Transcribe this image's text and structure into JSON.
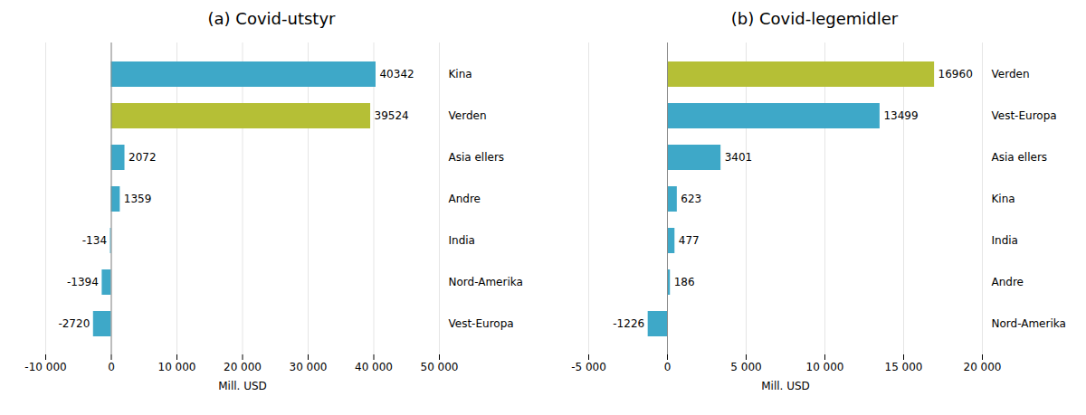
{
  "chart_data": [
    {
      "type": "bar",
      "orientation": "horizontal",
      "title": "(a) Covid-utstyr",
      "categories": [
        "Kina",
        "Verden",
        "Asia ellers",
        "Andre",
        "India",
        "Nord-Amerika",
        "Vest-Europa"
      ],
      "values": [
        40342,
        39524,
        2072,
        1359,
        -134,
        -1394,
        -2720
      ],
      "colors": [
        "#3ea8c8",
        "#b5bf36",
        "#3ea8c8",
        "#3ea8c8",
        "#3ea8c8",
        "#3ea8c8",
        "#3ea8c8"
      ],
      "xlim": [
        -10000,
        50000
      ],
      "xticks": [
        {
          "value": -10000,
          "label": "-10 000"
        },
        0,
        {
          "value": 10000,
          "label": "10 000"
        },
        {
          "value": 20000,
          "label": "20 000"
        },
        {
          "value": 30000,
          "label": "30 000"
        },
        {
          "value": 40000,
          "label": "40 000"
        },
        {
          "value": 50000,
          "label": "50 000"
        }
      ],
      "xlabel": "Mill. USD",
      "grid": true,
      "data_labels": true
    },
    {
      "type": "bar",
      "orientation": "horizontal",
      "title": "(b) Covid-legemidler",
      "categories": [
        "Verden",
        "Vest-Europa",
        "Asia ellers",
        "Kina",
        "India",
        "Andre",
        "Nord-Amerika"
      ],
      "values": [
        16960,
        13499,
        3401,
        623,
        477,
        186,
        -1226
      ],
      "colors": [
        "#b5bf36",
        "#3ea8c8",
        "#3ea8c8",
        "#3ea8c8",
        "#3ea8c8",
        "#3ea8c8",
        "#3ea8c8"
      ],
      "xlim": [
        -5000,
        20000
      ],
      "xticks": [
        {
          "value": -5000,
          "label": "-5 000"
        },
        0,
        {
          "value": 5000,
          "label": "5 000"
        },
        {
          "value": 10000,
          "label": "10 000"
        },
        {
          "value": 15000,
          "label": "15 000"
        },
        {
          "value": 20000,
          "label": "20 000"
        }
      ],
      "xlabel": "Mill. USD",
      "grid": true,
      "data_labels": true
    }
  ]
}
